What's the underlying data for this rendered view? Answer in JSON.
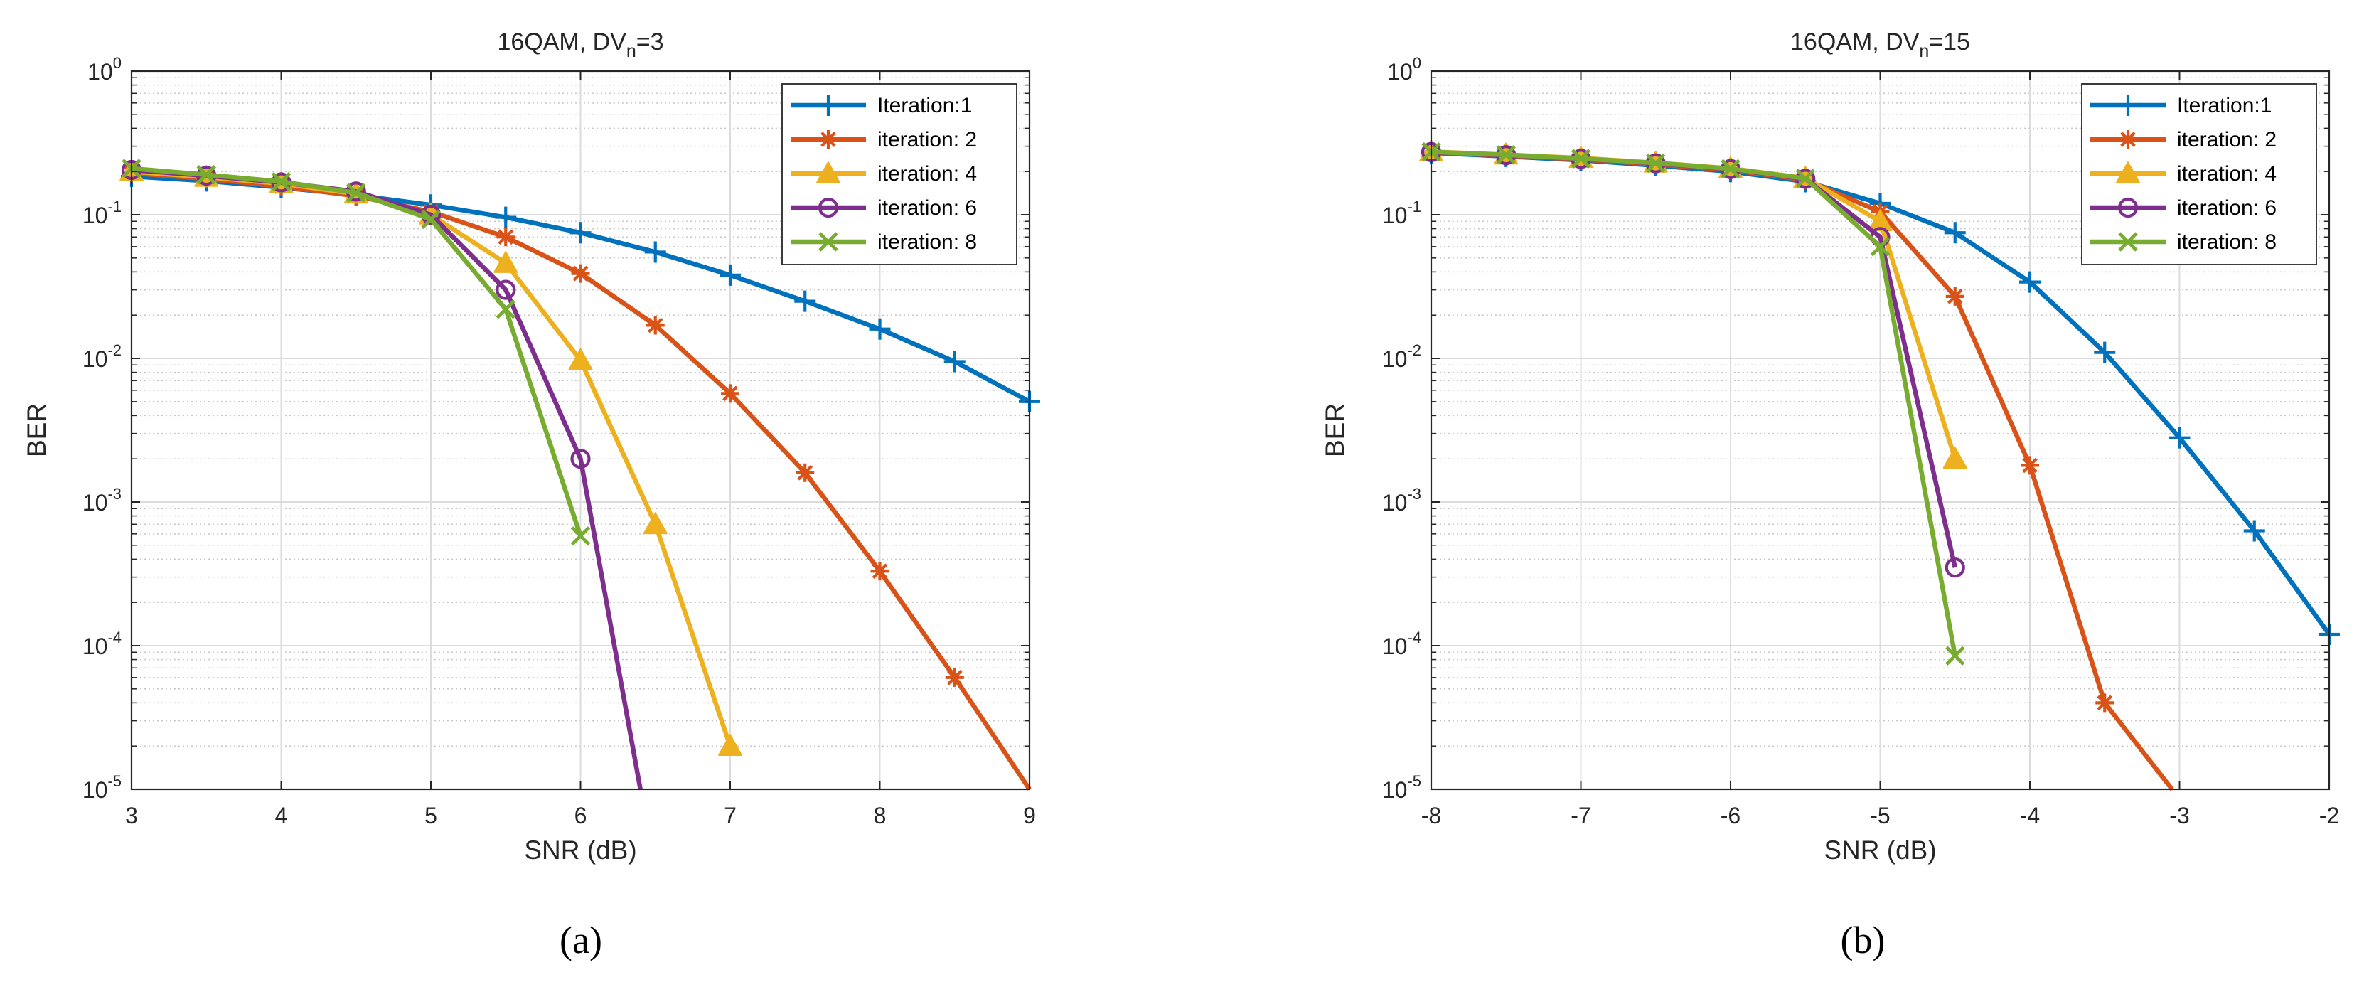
{
  "chart_data": [
    {
      "type": "line",
      "title": "16QAM, DVn=3",
      "title_parts": {
        "main": "16QAM, DV",
        "sub": "n",
        "tail": "=3"
      },
      "caption": "(a)",
      "xlabel": "SNR (dB)",
      "ylabel": "BER",
      "xlim": [
        3,
        9
      ],
      "ylim": [
        1e-05,
        1
      ],
      "yscale": "log",
      "grid": true,
      "minor_grid": true,
      "legend_position": "top-right",
      "xticks": [
        "3",
        "4",
        "5",
        "6",
        "7",
        "8",
        "9"
      ],
      "yticks": [
        {
          "value": 1,
          "base": "10",
          "exp": "0"
        },
        {
          "value": 0.1,
          "base": "10",
          "exp": "-1"
        },
        {
          "value": 0.01,
          "base": "10",
          "exp": "-2"
        },
        {
          "value": 0.001,
          "base": "10",
          "exp": "-3"
        },
        {
          "value": 0.0001,
          "base": "10",
          "exp": "-4"
        },
        {
          "value": 1e-05,
          "base": "10",
          "exp": "-5"
        }
      ],
      "series": [
        {
          "name": "Iteration:1",
          "color": "#0072BD",
          "marker": "plus",
          "x": [
            3,
            3.5,
            4,
            4.5,
            5,
            5.5,
            6,
            6.5,
            7,
            7.5,
            8,
            8.5,
            9
          ],
          "y": [
            0.185,
            0.172,
            0.155,
            0.137,
            0.117,
            0.096,
            0.075,
            0.055,
            0.038,
            0.025,
            0.016,
            0.0095,
            0.005
          ]
        },
        {
          "name": "iteration: 2",
          "color": "#D95319",
          "marker": "asterisk",
          "x": [
            3,
            3.5,
            4,
            4.5,
            5,
            5.5,
            6,
            6.5,
            7,
            7.5,
            8,
            8.5,
            9
          ],
          "y": [
            0.195,
            0.178,
            0.158,
            0.135,
            0.105,
            0.07,
            0.039,
            0.017,
            0.0057,
            0.0016,
            0.00033,
            6e-05,
            1e-05
          ]
        },
        {
          "name": "iteration: 4",
          "color": "#EDB120",
          "marker": "triangle",
          "x": [
            3,
            3.5,
            4,
            4.5,
            5,
            5.5,
            6,
            6.5,
            7
          ],
          "y": [
            0.2,
            0.183,
            0.165,
            0.14,
            0.1,
            0.046,
            0.0097,
            0.0007,
            2e-05
          ]
        },
        {
          "name": "iteration: 6",
          "color": "#7E2F8E",
          "marker": "circle",
          "x": [
            3,
            3.5,
            4,
            4.5,
            5,
            5.5,
            6,
            6.4
          ],
          "y": [
            0.205,
            0.187,
            0.168,
            0.145,
            0.1,
            0.03,
            0.002,
            1e-05
          ]
        },
        {
          "name": "iteration: 8",
          "color": "#77AC30",
          "marker": "x",
          "x": [
            3,
            3.5,
            4,
            4.5,
            5,
            5.5,
            6
          ],
          "y": [
            0.21,
            0.19,
            0.17,
            0.142,
            0.093,
            0.022,
            0.00058
          ]
        }
      ]
    },
    {
      "type": "line",
      "title": "16QAM, DVn=15",
      "title_parts": {
        "main": "16QAM, DV",
        "sub": "n",
        "tail": "=15"
      },
      "caption": "(b)",
      "xlabel": "SNR (dB)",
      "ylabel": "BER",
      "xlim": [
        -8,
        -2
      ],
      "ylim": [
        1e-05,
        1
      ],
      "yscale": "log",
      "grid": true,
      "minor_grid": true,
      "legend_position": "top-right",
      "xticks": [
        "-8",
        "-7",
        "-6",
        "-5",
        "-4",
        "-3",
        "-2"
      ],
      "yticks": [
        {
          "value": 1,
          "base": "10",
          "exp": "0"
        },
        {
          "value": 0.1,
          "base": "10",
          "exp": "-1"
        },
        {
          "value": 0.01,
          "base": "10",
          "exp": "-2"
        },
        {
          "value": 0.001,
          "base": "10",
          "exp": "-3"
        },
        {
          "value": 0.0001,
          "base": "10",
          "exp": "-4"
        },
        {
          "value": 1e-05,
          "base": "10",
          "exp": "-5"
        }
      ],
      "series": [
        {
          "name": "Iteration:1",
          "color": "#0072BD",
          "marker": "plus",
          "x": [
            -8,
            -7.5,
            -7,
            -6.5,
            -6,
            -5.5,
            -5,
            -4.5,
            -4,
            -3.5,
            -3,
            -2.5,
            -2
          ],
          "y": [
            0.27,
            0.255,
            0.24,
            0.22,
            0.2,
            0.17,
            0.12,
            0.075,
            0.034,
            0.011,
            0.0028,
            0.00063,
            0.00012
          ]
        },
        {
          "name": "iteration: 2",
          "color": "#D95319",
          "marker": "asterisk",
          "x": [
            -8,
            -7.5,
            -7,
            -6.5,
            -6,
            -5.5,
            -5,
            -4.5,
            -4,
            -3.5,
            -3.05
          ],
          "y": [
            0.272,
            0.258,
            0.243,
            0.225,
            0.205,
            0.175,
            0.105,
            0.027,
            0.0018,
            4e-05,
            1e-05
          ]
        },
        {
          "name": "iteration: 4",
          "color": "#EDB120",
          "marker": "triangle",
          "x": [
            -8,
            -7.5,
            -7,
            -6.5,
            -6,
            -5.5,
            -5,
            -4.5
          ],
          "y": [
            0.275,
            0.262,
            0.248,
            0.23,
            0.21,
            0.18,
            0.09,
            0.002
          ]
        },
        {
          "name": "iteration: 6",
          "color": "#7E2F8E",
          "marker": "circle",
          "x": [
            -8,
            -7.5,
            -7,
            -6.5,
            -6,
            -5.5,
            -5,
            -4.5
          ],
          "y": [
            0.273,
            0.26,
            0.245,
            0.228,
            0.208,
            0.178,
            0.07,
            0.00035
          ]
        },
        {
          "name": "iteration: 8",
          "color": "#77AC30",
          "marker": "x",
          "x": [
            -8,
            -7.5,
            -7,
            -6.5,
            -6,
            -5.5,
            -5,
            -4.5
          ],
          "y": [
            0.274,
            0.261,
            0.246,
            0.229,
            0.209,
            0.179,
            0.06,
            8.5e-05
          ]
        }
      ]
    }
  ]
}
